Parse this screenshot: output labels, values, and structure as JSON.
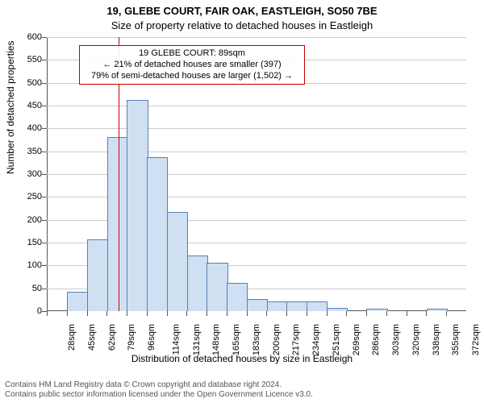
{
  "title_line1": "19, GLEBE COURT, FAIR OAK, EASTLEIGH, SO50 7BE",
  "title_line2": "Size of property relative to detached houses in Eastleigh",
  "ylabel": "Number of detached properties",
  "xlabel": "Distribution of detached houses by size in Eastleigh",
  "info_box": {
    "line1": "19 GLEBE COURT: 89sqm",
    "line2": "← 21% of detached houses are smaller (397)",
    "line3": "79% of semi-detached houses are larger (1,502) →",
    "border_color": "#c40000"
  },
  "histogram": {
    "type": "histogram",
    "bar_fill": "#cfe0f3",
    "bar_stroke": "#5a7fb0",
    "background": "#ffffff",
    "grid_color": "#cccccc",
    "ylim": [
      0,
      600
    ],
    "ytick_step": 50,
    "x_categories": [
      "28sqm",
      "45sqm",
      "62sqm",
      "79sqm",
      "96sqm",
      "114sqm",
      "131sqm",
      "148sqm",
      "165sqm",
      "183sqm",
      "200sqm",
      "217sqm",
      "234sqm",
      "251sqm",
      "269sqm",
      "286sqm",
      "303sqm",
      "320sqm",
      "338sqm",
      "355sqm",
      "372sqm"
    ],
    "values": [
      0,
      40,
      155,
      380,
      460,
      335,
      215,
      120,
      105,
      60,
      25,
      20,
      20,
      20,
      5,
      0,
      3,
      0,
      0,
      3,
      0
    ],
    "marker_color": "#c40000",
    "marker_value": 89,
    "x_start": 28,
    "x_step": 17
  },
  "footer_line1": "Contains HM Land Registry data © Crown copyright and database right 2024.",
  "footer_line2": "Contains public sector information licensed under the Open Government Licence v3.0.",
  "fontsize_title": 13,
  "fontsize_axis_label": 12,
  "fontsize_tick": 11,
  "fontsize_footer": 10
}
